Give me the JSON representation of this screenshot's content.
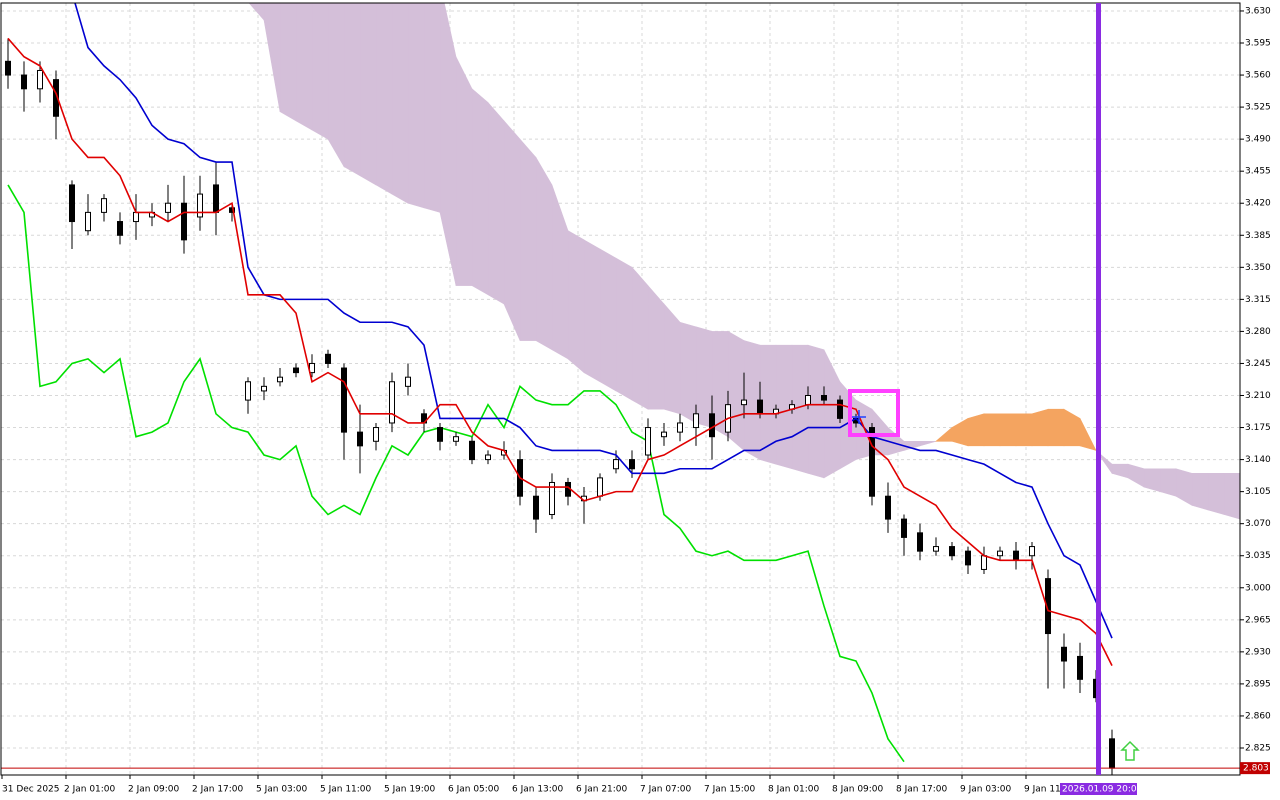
{
  "chart_data": {
    "type": "candlestick",
    "ylim": [
      2.7955,
      3.6387
    ],
    "yticks": [
      {
        "value": 3.63,
        "label": "3.630"
      },
      {
        "value": 3.595,
        "label": "3.595"
      },
      {
        "value": 3.56,
        "label": "3.560"
      },
      {
        "value": 3.525,
        "label": "3.525"
      },
      {
        "value": 3.49,
        "label": "3.490"
      },
      {
        "value": 3.455,
        "label": "3.455"
      },
      {
        "value": 3.42,
        "label": "3.420"
      },
      {
        "value": 3.385,
        "label": "3.385"
      },
      {
        "value": 3.35,
        "label": "3.350"
      },
      {
        "value": 3.315,
        "label": "3.315"
      },
      {
        "value": 3.28,
        "label": "3.280"
      },
      {
        "value": 3.245,
        "label": "3.245"
      },
      {
        "value": 3.21,
        "label": "3.210"
      },
      {
        "value": 3.175,
        "label": "3.175"
      },
      {
        "value": 3.14,
        "label": "3.140"
      },
      {
        "value": 3.105,
        "label": "3.105"
      },
      {
        "value": 3.07,
        "label": "3.070"
      },
      {
        "value": 3.035,
        "label": "3.035"
      },
      {
        "value": 3.0,
        "label": "3.000"
      },
      {
        "value": 2.965,
        "label": "2.965"
      },
      {
        "value": 2.93,
        "label": "2.930"
      },
      {
        "value": 2.895,
        "label": "2.895"
      },
      {
        "value": 2.86,
        "label": "2.860"
      },
      {
        "value": 2.825,
        "label": "2.825"
      }
    ],
    "x_labels": [
      "31 Dec 2025",
      "2 Jan 01:00",
      "2 Jan 09:00",
      "2 Jan 17:00",
      "5 Jan 03:00",
      "5 Jan 11:00",
      "5 Jan 19:00",
      "6 Jan 05:00",
      "6 Jan 13:00",
      "6 Jan 21:00",
      "7 Jan 07:00",
      "7 Jan 15:00",
      "8 Jan 01:00",
      "8 Jan 09:00",
      "8 Jan 17:00",
      "9 Jan 03:00",
      "9 Jan 11:00"
    ],
    "grid": true,
    "open": [
      3.575,
      3.56,
      3.545,
      3.555,
      3.44,
      3.39,
      3.41,
      3.4,
      3.4,
      3.405,
      3.41,
      3.42,
      3.405,
      3.44,
      3.415,
      3.205,
      3.215,
      3.225,
      3.24,
      3.235,
      3.255,
      3.24,
      3.17,
      3.16,
      3.18,
      3.22,
      3.19,
      3.175,
      3.16,
      3.16,
      3.14,
      3.145,
      3.14,
      3.1,
      3.08,
      3.115,
      3.095,
      3.1,
      3.13,
      3.14,
      3.145,
      3.165,
      3.17,
      3.175,
      3.19,
      3.17,
      3.2,
      3.205,
      3.19,
      3.195,
      3.2,
      3.21,
      3.205,
      3.185,
      3.175,
      3.1,
      3.075,
      3.06,
      3.04,
      3.045,
      3.04,
      3.02,
      3.035,
      3.04,
      3.035,
      3.01,
      2.935,
      2.925,
      2.9,
      2.835,
      null,
      null,
      null,
      null,
      null,
      null,
      null,
      null
    ],
    "high": [
      3.6,
      3.575,
      3.575,
      3.565,
      3.445,
      3.43,
      3.43,
      3.41,
      3.43,
      3.42,
      3.44,
      3.45,
      3.45,
      3.465,
      3.42,
      3.23,
      3.23,
      3.24,
      3.245,
      3.255,
      3.26,
      3.245,
      3.2,
      3.18,
      3.235,
      3.245,
      3.195,
      3.18,
      3.17,
      3.165,
      3.15,
      3.16,
      3.15,
      3.11,
      3.125,
      3.12,
      3.11,
      3.125,
      3.15,
      3.15,
      3.185,
      3.18,
      3.19,
      3.2,
      3.21,
      3.215,
      3.235,
      3.225,
      3.2,
      3.205,
      3.22,
      3.22,
      3.21,
      3.19,
      3.18,
      3.115,
      3.08,
      3.07,
      3.055,
      3.05,
      3.045,
      3.045,
      3.045,
      3.05,
      3.05,
      3.02,
      2.95,
      2.94,
      2.91,
      2.845,
      null,
      null,
      null,
      null,
      null,
      null,
      null,
      null
    ],
    "low": [
      3.545,
      3.52,
      3.53,
      3.49,
      3.37,
      3.385,
      3.4,
      3.375,
      3.38,
      3.395,
      3.4,
      3.365,
      3.39,
      3.385,
      3.4,
      3.19,
      3.205,
      3.22,
      3.23,
      3.23,
      3.24,
      3.14,
      3.125,
      3.15,
      3.17,
      3.21,
      3.17,
      3.15,
      3.155,
      3.135,
      3.135,
      3.14,
      3.09,
      3.06,
      3.075,
      3.09,
      3.07,
      3.095,
      3.125,
      3.12,
      3.14,
      3.155,
      3.16,
      3.155,
      3.14,
      3.16,
      3.185,
      3.185,
      3.185,
      3.19,
      3.195,
      3.2,
      3.18,
      3.175,
      3.09,
      3.06,
      3.035,
      3.03,
      3.035,
      3.03,
      3.015,
      3.015,
      3.03,
      3.02,
      3.02,
      2.89,
      2.89,
      2.885,
      2.875,
      2.79,
      null,
      null,
      null,
      null,
      null,
      null,
      null,
      null
    ],
    "close": [
      3.56,
      3.545,
      3.565,
      3.515,
      3.4,
      3.41,
      3.425,
      3.385,
      3.41,
      3.41,
      3.42,
      3.38,
      3.43,
      3.41,
      3.41,
      3.225,
      3.22,
      3.23,
      3.235,
      3.245,
      3.245,
      3.17,
      3.155,
      3.175,
      3.225,
      3.23,
      3.18,
      3.16,
      3.165,
      3.14,
      3.145,
      3.15,
      3.1,
      3.075,
      3.115,
      3.1,
      3.1,
      3.12,
      3.14,
      3.13,
      3.175,
      3.17,
      3.18,
      3.19,
      3.165,
      3.2,
      3.205,
      3.19,
      3.195,
      3.2,
      3.21,
      3.205,
      3.185,
      3.18,
      3.1,
      3.075,
      3.055,
      3.04,
      3.045,
      3.035,
      3.025,
      3.035,
      3.04,
      3.03,
      3.045,
      2.95,
      2.92,
      2.9,
      2.88,
      2.803,
      null,
      null,
      null,
      null,
      null,
      null,
      null,
      null
    ],
    "tenkan": {
      "color": "#e00000",
      "values": [
        3.6,
        3.58,
        3.57,
        3.54,
        3.49,
        3.47,
        3.47,
        3.45,
        3.41,
        3.41,
        3.4,
        3.41,
        3.41,
        3.41,
        3.42,
        3.32,
        3.32,
        3.32,
        3.3,
        3.225,
        3.235,
        3.225,
        3.19,
        3.19,
        3.19,
        3.18,
        3.18,
        3.2,
        3.2,
        3.17,
        3.155,
        3.15,
        3.12,
        3.11,
        3.11,
        3.11,
        3.095,
        3.1,
        3.105,
        3.105,
        3.14,
        3.145,
        3.155,
        3.165,
        3.175,
        3.185,
        3.19,
        3.19,
        3.19,
        3.195,
        3.2,
        3.2,
        3.2,
        3.195,
        3.155,
        3.14,
        3.11,
        3.1,
        3.09,
        3.065,
        3.05,
        3.035,
        3.03,
        3.03,
        3.03,
        2.975,
        2.97,
        2.965,
        2.95,
        2.915,
        null,
        null,
        null,
        null,
        null,
        null,
        null,
        null
      ]
    },
    "kijun": {
      "color": "#0000d0",
      "values": [
        null,
        null,
        null,
        null,
        3.65,
        3.59,
        3.57,
        3.555,
        3.535,
        3.505,
        3.49,
        3.485,
        3.47,
        3.465,
        3.465,
        3.35,
        3.32,
        3.315,
        3.315,
        3.315,
        3.315,
        3.3,
        3.29,
        3.29,
        3.29,
        3.285,
        3.265,
        3.185,
        3.185,
        3.185,
        3.185,
        3.185,
        3.175,
        3.155,
        3.15,
        3.15,
        3.15,
        3.15,
        3.145,
        3.125,
        3.125,
        3.125,
        3.13,
        3.13,
        3.13,
        3.14,
        3.15,
        3.15,
        3.16,
        3.165,
        3.175,
        3.175,
        3.175,
        3.185,
        3.165,
        3.16,
        3.155,
        3.15,
        3.15,
        3.145,
        3.14,
        3.135,
        3.125,
        3.115,
        3.11,
        3.07,
        3.035,
        3.025,
        2.985,
        2.945,
        null,
        null,
        null,
        null,
        null,
        null,
        null,
        null
      ]
    },
    "chikou": {
      "color": "#00e000",
      "values": [
        3.44,
        3.41,
        3.22,
        3.225,
        3.245,
        3.25,
        3.235,
        3.25,
        3.165,
        3.17,
        3.18,
        3.225,
        3.25,
        3.19,
        3.175,
        3.17,
        3.145,
        3.14,
        3.155,
        3.1,
        3.08,
        3.09,
        3.08,
        3.12,
        3.155,
        3.145,
        3.17,
        3.175,
        3.17,
        3.165,
        3.2,
        3.175,
        3.22,
        3.205,
        3.2,
        3.2,
        3.215,
        3.215,
        3.2,
        3.17,
        3.16,
        3.08,
        3.065,
        3.04,
        3.035,
        3.04,
        3.03,
        3.03,
        3.03,
        3.035,
        3.04,
        2.98,
        2.925,
        2.92,
        2.885,
        2.835,
        2.81,
        null,
        null,
        null,
        null,
        null,
        null,
        null,
        null,
        null,
        null,
        null,
        null,
        null,
        null,
        null,
        null,
        null,
        null,
        null,
        null,
        null
      ]
    },
    "span_a": {
      "values": [
        null,
        null,
        null,
        null,
        null,
        null,
        null,
        null,
        null,
        null,
        null,
        null,
        null,
        null,
        null,
        3.64,
        3.62,
        3.52,
        3.51,
        3.5,
        3.49,
        3.46,
        3.45,
        3.44,
        3.43,
        3.42,
        3.415,
        3.41,
        3.33,
        3.33,
        3.32,
        3.31,
        3.27,
        3.27,
        3.26,
        3.25,
        3.235,
        3.225,
        3.215,
        3.205,
        3.195,
        3.195,
        3.19,
        3.18,
        3.175,
        3.165,
        3.15,
        3.14,
        3.135,
        3.13,
        3.125,
        3.12,
        3.13,
        3.14,
        3.145,
        3.145,
        3.15,
        3.155,
        3.16,
        3.175,
        3.185,
        3.19,
        3.19,
        3.19,
        3.19,
        3.195,
        3.195,
        3.185,
        3.15,
        3.125,
        3.12,
        3.11,
        3.105,
        3.1,
        3.09,
        3.085,
        3.08,
        3.075
      ]
    },
    "span_b": {
      "values": [
        null,
        null,
        null,
        null,
        null,
        null,
        null,
        null,
        null,
        null,
        null,
        null,
        null,
        null,
        null,
        3.66,
        3.66,
        3.66,
        3.66,
        3.66,
        3.66,
        3.66,
        3.66,
        3.66,
        3.66,
        3.66,
        3.66,
        3.66,
        3.58,
        3.545,
        3.53,
        3.51,
        3.49,
        3.47,
        3.44,
        3.39,
        3.38,
        3.37,
        3.36,
        3.35,
        3.33,
        3.31,
        3.29,
        3.285,
        3.28,
        3.28,
        3.27,
        3.265,
        3.265,
        3.265,
        3.265,
        3.26,
        3.225,
        3.205,
        3.195,
        3.175,
        3.16,
        3.16,
        3.16,
        3.16,
        3.155,
        3.155,
        3.155,
        3.155,
        3.155,
        3.155,
        3.155,
        3.155,
        3.15,
        3.135,
        3.135,
        3.13,
        3.13,
        3.13,
        3.125,
        3.125,
        3.125,
        3.125
      ]
    },
    "cloud_bear_color": "#d4bfd9",
    "cloud_bull_color": "#f4a460",
    "current_price": {
      "value": 2.803,
      "label": "2.803"
    },
    "time_marker": "2026.01.09 20:00"
  }
}
